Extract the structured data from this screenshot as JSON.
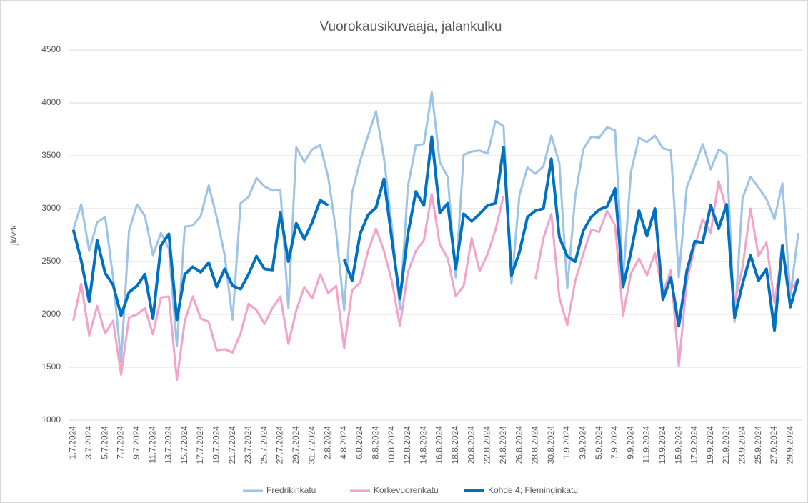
{
  "chart_data": {
    "type": "line",
    "title": "Vuorokausikuvaaja,  jalankulku",
    "y_label": "jk/vrk",
    "categories": [
      "1.7.2024",
      null,
      "3.7.2024",
      null,
      "5.7.2024",
      null,
      "7.7.2024",
      null,
      "9.7.2024",
      null,
      "11.7.2024",
      null,
      "13.7.2024",
      null,
      "15.7.2024",
      null,
      "17.7.2024",
      null,
      "19.7.2024",
      null,
      "21.7.2024",
      null,
      "23.7.2024",
      null,
      "25.7.2024",
      null,
      "27.7.2024",
      null,
      "29.7.2024",
      null,
      "31.7.2024",
      null,
      "2.8.2024",
      null,
      "4.8.2024",
      null,
      "6.8.2024",
      null,
      "8.8.2024",
      null,
      "10.8.2024",
      null,
      "12.8.2024",
      null,
      "14.8.2024",
      null,
      "16.8.2024",
      null,
      "18.8.2024",
      null,
      "20.8.2024",
      null,
      "22.8.2024",
      null,
      "24.8.2024",
      null,
      "26.8.2024",
      null,
      "28.8.2024",
      null,
      "30.8.2024",
      null,
      "1.9.2024",
      null,
      "3.9.2024",
      null,
      "5.9.2024",
      null,
      "7.9.2024",
      null,
      "9.9.2024",
      null,
      "11.9.2024",
      null,
      "13.9.2024",
      null,
      "15.9.2024",
      null,
      "17.9.2024",
      null,
      "19.9.2024",
      null,
      "21.9.2024",
      null,
      "23.9.2024",
      null,
      "25.9.2024",
      null,
      "27.9.2024",
      null,
      "29.9.2024",
      null
    ],
    "series": [
      {
        "name": "Fredrikinkatu",
        "color": "#9dc3e6",
        "values": [
          2800,
          3040,
          2600,
          2870,
          2920,
          2350,
          1550,
          2790,
          3040,
          2930,
          2560,
          2770,
          2620,
          1700,
          2830,
          2840,
          2930,
          3220,
          2920,
          2560,
          1950,
          3050,
          3110,
          3290,
          3210,
          3170,
          3180,
          2060,
          3580,
          3440,
          3560,
          3600,
          3300,
          2780,
          2040,
          3150,
          3450,
          3690,
          3920,
          3480,
          2820,
          2050,
          3210,
          3600,
          3610,
          4100,
          3440,
          3300,
          2350,
          3510,
          3540,
          3550,
          3520,
          3830,
          3780,
          2290,
          3130,
          3390,
          3330,
          3400,
          3690,
          3430,
          2250,
          3120,
          3560,
          3680,
          3670,
          3770,
          3740,
          2340,
          3350,
          3670,
          3630,
          3690,
          3570,
          3550,
          2350,
          3200,
          3400,
          3610,
          3370,
          3560,
          3510,
          1930,
          3100,
          3300,
          3200,
          3090,
          2900,
          3240,
          2180,
          2770
        ]
      },
      {
        "name": "Korkevuorenkatu",
        "color": "#f2a2cb",
        "values": [
          1940,
          2290,
          1800,
          2080,
          1820,
          1940,
          1430,
          1970,
          2000,
          2060,
          1810,
          2160,
          2170,
          1380,
          1940,
          2170,
          1960,
          1930,
          1660,
          1670,
          1640,
          1820,
          2100,
          2040,
          1910,
          2060,
          2170,
          1720,
          2040,
          2260,
          2150,
          2380,
          2200,
          2270,
          1680,
          2230,
          2300,
          2600,
          2810,
          2600,
          2310,
          1890,
          2400,
          2600,
          2700,
          3140,
          2660,
          2530,
          2170,
          2270,
          2720,
          2410,
          2570,
          2800,
          3120,
          null,
          null,
          null,
          2330,
          2720,
          2950,
          2160,
          1900,
          2320,
          2570,
          2800,
          2780,
          2980,
          2840,
          1990,
          2390,
          2530,
          2370,
          2580,
          2200,
          2420,
          1510,
          2310,
          2640,
          2900,
          2770,
          3260,
          2980,
          2100,
          2450,
          3000,
          2550,
          2680,
          2110,
          2600,
          2230,
          2340
        ]
      },
      {
        "name": "Kohde 4; Fleminginkatu",
        "color": "#0070c0",
        "values": [
          2800,
          2510,
          2120,
          2700,
          2390,
          2280,
          1990,
          2210,
          2270,
          2380,
          1960,
          2650,
          2760,
          1950,
          2380,
          2450,
          2400,
          2490,
          2260,
          2430,
          2270,
          2240,
          2380,
          2550,
          2430,
          2420,
          2960,
          2500,
          2860,
          2710,
          2870,
          3080,
          3030,
          null,
          2520,
          2320,
          2760,
          2940,
          3010,
          3280,
          2700,
          2150,
          2760,
          3160,
          3030,
          3680,
          2960,
          3050,
          2430,
          2950,
          2880,
          2950,
          3030,
          3050,
          3580,
          2370,
          2590,
          2920,
          2980,
          3000,
          3470,
          2730,
          2550,
          2500,
          2790,
          2920,
          2990,
          3020,
          3190,
          2260,
          2590,
          2980,
          2740,
          3000,
          2140,
          2350,
          1890,
          2410,
          2690,
          2680,
          3030,
          2810,
          3040,
          1970,
          2290,
          2560,
          2320,
          2430,
          1850,
          2650,
          2070,
          2340
        ]
      }
    ],
    "ylim": [
      1000,
      4500
    ],
    "yticks": [
      1000,
      1500,
      2000,
      2500,
      3000,
      3500,
      4000,
      4500
    ],
    "grid": true,
    "legend": "bottom"
  }
}
